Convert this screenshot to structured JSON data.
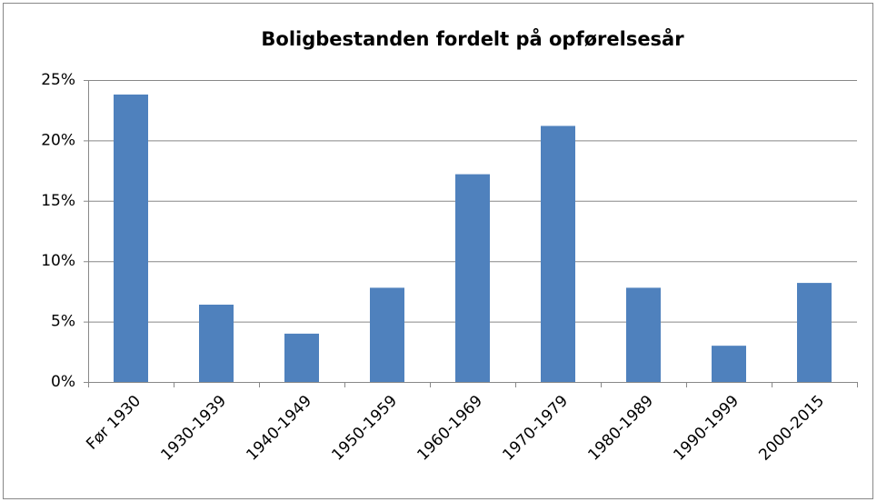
{
  "chart_data": {
    "type": "bar",
    "title": "Boligbestanden fordelt på opførelsesår",
    "categories": [
      "Før 1930",
      "1930-1939",
      "1940-1949",
      "1950-1959",
      "1960-1969",
      "1970-1979",
      "1980-1989",
      "1990-1999",
      "2000-2015"
    ],
    "values": [
      23.8,
      6.4,
      4.0,
      7.8,
      17.2,
      21.2,
      7.8,
      3.0,
      8.2
    ],
    "color": "#4f81bd",
    "ylim": [
      0,
      25
    ],
    "yticks": [
      {
        "value": 0,
        "label": "0%"
      },
      {
        "value": 5,
        "label": "5%"
      },
      {
        "value": 10,
        "label": "10%"
      },
      {
        "value": 15,
        "label": "15%"
      },
      {
        "value": 20,
        "label": "20%"
      },
      {
        "value": 25,
        "label": "25%"
      }
    ],
    "grid": true
  }
}
